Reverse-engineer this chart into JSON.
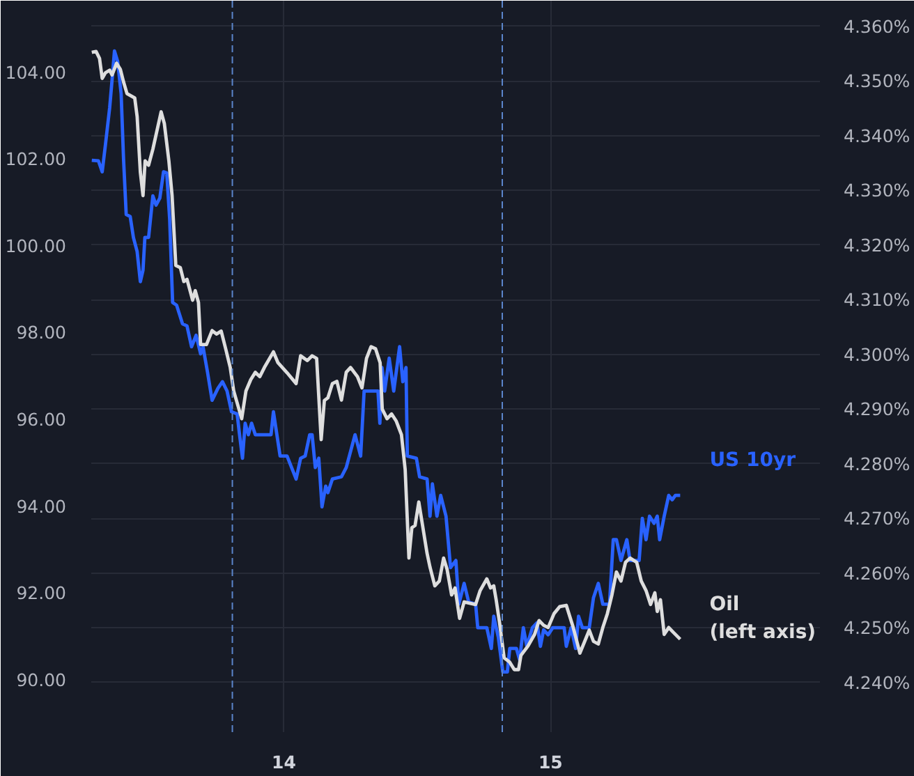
{
  "chart_data": {
    "type": "line",
    "xlim": [
      13.278,
      16.01
    ],
    "xticks": [
      14,
      15
    ],
    "ylim": [
      88.78,
      105.63
    ],
    "yticks": [
      {
        "value": 90,
        "label": "90.00"
      },
      {
        "value": 92,
        "label": "92.00"
      },
      {
        "value": 94,
        "label": "94.00"
      },
      {
        "value": 96,
        "label": "96.00"
      },
      {
        "value": 98,
        "label": "98.00"
      },
      {
        "value": 100,
        "label": "100.00"
      },
      {
        "value": 102,
        "label": "102.00"
      },
      {
        "value": 104,
        "label": "104.00"
      }
    ],
    "y2lim": [
      4.2309,
      4.3647
    ],
    "y2ticks": [
      {
        "value": 4.24,
        "label": "4.240%"
      },
      {
        "value": 4.25,
        "label": "4.250%"
      },
      {
        "value": 4.26,
        "label": "4.260%"
      },
      {
        "value": 4.27,
        "label": "4.270%"
      },
      {
        "value": 4.28,
        "label": "4.280%"
      },
      {
        "value": 4.29,
        "label": "4.290%"
      },
      {
        "value": 4.3,
        "label": "4.300%"
      },
      {
        "value": 4.31,
        "label": "4.310%"
      },
      {
        "value": 4.32,
        "label": "4.320%"
      },
      {
        "value": 4.33,
        "label": "4.330%"
      },
      {
        "value": 4.34,
        "label": "4.340%"
      },
      {
        "value": 4.35,
        "label": "4.350%"
      },
      {
        "value": 4.36,
        "label": "4.360%"
      }
    ],
    "grid": true,
    "ref_lines": [
      {
        "axis": "x",
        "value": 13.807,
        "color": "#5b86cc",
        "line_style": "dashed"
      },
      {
        "axis": "x",
        "value": 14.819,
        "color": "#5b86cc",
        "line_style": "dashed"
      }
    ],
    "series": [
      {
        "name": "US 10yr",
        "color": "#2962ff",
        "axis": "y2",
        "x": [
          13.28,
          13.305,
          13.319,
          13.331,
          13.347,
          13.356,
          13.365,
          13.377,
          13.39,
          13.399,
          13.409,
          13.424,
          13.436,
          13.45,
          13.462,
          13.472,
          13.479,
          13.493,
          13.509,
          13.521,
          13.535,
          13.549,
          13.561,
          13.572,
          13.583,
          13.598,
          13.62,
          13.637,
          13.654,
          13.671,
          13.688,
          13.697,
          13.714,
          13.731,
          13.753,
          13.77,
          13.787,
          13.804,
          13.825,
          13.833,
          13.845,
          13.855,
          13.867,
          13.879,
          13.893,
          13.952,
          13.961,
          13.986,
          14.012,
          14.046,
          14.063,
          14.08,
          14.097,
          14.106,
          14.118,
          14.131,
          14.143,
          14.157,
          14.165,
          14.182,
          14.216,
          14.234,
          14.267,
          14.288,
          14.301,
          14.353,
          14.36,
          14.368,
          14.378,
          14.395,
          14.412,
          14.434,
          14.446,
          14.458,
          14.463,
          14.497,
          14.509,
          14.537,
          14.548,
          14.557,
          14.574,
          14.588,
          14.608,
          14.625,
          14.645,
          14.656,
          14.676,
          14.693,
          14.719,
          14.727,
          14.761,
          14.778,
          14.787,
          14.804,
          14.821,
          14.838,
          14.847,
          14.872,
          14.884,
          14.898,
          14.911,
          14.932,
          14.949,
          14.962,
          14.974,
          14.991,
          15.008,
          15.051,
          15.059,
          15.077,
          15.094,
          15.105,
          15.119,
          15.145,
          15.161,
          15.179,
          15.196,
          15.221,
          15.235,
          15.247,
          15.264,
          15.286,
          15.298,
          15.332,
          15.344,
          15.358,
          15.371,
          15.388,
          15.4,
          15.409,
          15.426,
          15.443,
          15.456,
          15.468,
          15.486
        ],
        "values": [
          4.3355,
          4.3354,
          4.3334,
          4.3383,
          4.3451,
          4.3502,
          4.3555,
          4.3536,
          4.3477,
          4.3358,
          4.3256,
          4.3252,
          4.3214,
          4.3188,
          4.3133,
          4.3154,
          4.3214,
          4.3214,
          4.329,
          4.3273,
          4.3286,
          4.3334,
          4.3332,
          4.3247,
          4.3095,
          4.309,
          4.3056,
          4.3052,
          4.3014,
          4.3035,
          4.3001,
          4.3014,
          4.2967,
          4.2916,
          4.2938,
          4.295,
          4.2933,
          4.2895,
          4.2891,
          4.2857,
          4.281,
          4.2874,
          4.2853,
          4.2874,
          4.2853,
          4.2853,
          4.2895,
          4.2814,
          4.2814,
          4.2772,
          4.281,
          4.2814,
          4.2853,
          4.2853,
          4.2793,
          4.281,
          4.2721,
          4.2759,
          4.2747,
          4.2772,
          4.2776,
          4.2793,
          4.2853,
          4.2814,
          4.2933,
          4.2933,
          4.2874,
          4.2976,
          4.2933,
          4.2993,
          4.2933,
          4.3014,
          4.295,
          4.2976,
          4.2814,
          4.281,
          4.2776,
          4.2772,
          4.2704,
          4.2763,
          4.2704,
          4.2742,
          4.2704,
          4.261,
          4.2623,
          4.2543,
          4.2581,
          4.2547,
          4.2543,
          4.25,
          4.25,
          4.2462,
          4.2521,
          4.2483,
          4.2419,
          4.2419,
          4.2462,
          4.2462,
          4.2441,
          4.25,
          4.2466,
          4.25,
          4.2509,
          4.2466,
          4.2496,
          4.2487,
          4.25,
          4.25,
          4.2466,
          4.25,
          4.2462,
          4.2521,
          4.25,
          4.25,
          4.2555,
          4.2581,
          4.2543,
          4.2543,
          4.2661,
          4.2661,
          4.2623,
          4.2661,
          4.2623,
          4.2623,
          4.27,
          4.2661,
          4.2704,
          4.2691,
          4.2704,
          4.2661,
          4.2704,
          4.2742,
          4.2734,
          4.2742,
          4.2742
        ]
      },
      {
        "name": "Oil\n(left axis)",
        "color": "#dedede",
        "x": [
          13.28,
          13.296,
          13.309,
          13.319,
          13.331,
          13.347,
          13.356,
          13.373,
          13.387,
          13.399,
          13.412,
          13.441,
          13.45,
          13.462,
          13.472,
          13.48,
          13.493,
          13.509,
          13.54,
          13.552,
          13.569,
          13.581,
          13.595,
          13.612,
          13.625,
          13.637,
          13.658,
          13.668,
          13.68,
          13.688,
          13.71,
          13.731,
          13.748,
          13.765,
          13.782,
          13.799,
          13.812,
          13.842,
          13.858,
          13.876,
          13.893,
          13.91,
          13.927,
          13.961,
          13.978,
          14.012,
          14.046,
          14.063,
          14.088,
          14.106,
          14.123,
          14.14,
          14.152,
          14.165,
          14.182,
          14.199,
          14.216,
          14.234,
          14.25,
          14.276,
          14.293,
          14.31,
          14.327,
          14.344,
          14.361,
          14.369,
          14.387,
          14.404,
          14.421,
          14.441,
          14.455,
          14.469,
          14.48,
          14.492,
          14.506,
          14.523,
          14.537,
          14.548,
          14.566,
          14.583,
          14.599,
          14.612,
          14.629,
          14.642,
          14.659,
          14.676,
          14.719,
          14.736,
          14.761,
          14.775,
          14.787,
          14.796,
          14.809,
          14.826,
          14.847,
          14.864,
          14.88,
          14.889,
          14.915,
          14.94,
          14.957,
          14.974,
          14.991,
          15.013,
          15.034,
          15.059,
          15.085,
          15.11,
          15.128,
          15.145,
          15.161,
          15.179,
          15.196,
          15.213,
          15.23,
          15.247,
          15.264,
          15.281,
          15.298,
          15.323,
          15.34,
          15.358,
          15.375,
          15.391,
          15.4,
          15.412,
          15.426,
          15.443,
          15.46,
          15.486
        ],
        "values": [
          104.44,
          104.46,
          104.3,
          103.84,
          103.97,
          104.03,
          103.92,
          104.19,
          104.05,
          103.76,
          103.49,
          103.39,
          102.96,
          101.68,
          101.14,
          101.94,
          101.84,
          102.21,
          103.07,
          102.8,
          101.94,
          101.14,
          99.53,
          99.48,
          99.16,
          99.21,
          98.73,
          98.95,
          98.68,
          97.71,
          97.71,
          98.03,
          97.95,
          98.02,
          97.61,
          97.18,
          96.64,
          96.0,
          96.64,
          96.9,
          97.07,
          96.97,
          97.18,
          97.54,
          97.29,
          97.06,
          96.81,
          97.45,
          97.34,
          97.45,
          97.39,
          95.52,
          96.42,
          96.48,
          96.81,
          96.86,
          96.43,
          97.07,
          97.18,
          96.97,
          96.71,
          97.39,
          97.66,
          97.61,
          97.29,
          96.22,
          96.0,
          96.11,
          95.95,
          95.63,
          94.82,
          92.79,
          93.49,
          93.54,
          94.08,
          93.43,
          92.9,
          92.58,
          92.15,
          92.26,
          92.79,
          92.53,
          91.94,
          92.1,
          91.4,
          91.78,
          91.72,
          92.04,
          92.31,
          92.1,
          92.15,
          91.83,
          91.29,
          90.49,
          90.39,
          90.22,
          90.22,
          90.55,
          90.76,
          91.03,
          91.35,
          91.24,
          91.19,
          91.51,
          91.67,
          91.7,
          91.19,
          90.6,
          90.87,
          91.13,
          90.87,
          90.81,
          91.19,
          91.51,
          91.94,
          92.47,
          92.26,
          92.69,
          92.79,
          92.69,
          92.26,
          92.04,
          91.72,
          91.99,
          91.56,
          91.83,
          91.03,
          91.19,
          91.08,
          90.92
        ]
      }
    ]
  }
}
